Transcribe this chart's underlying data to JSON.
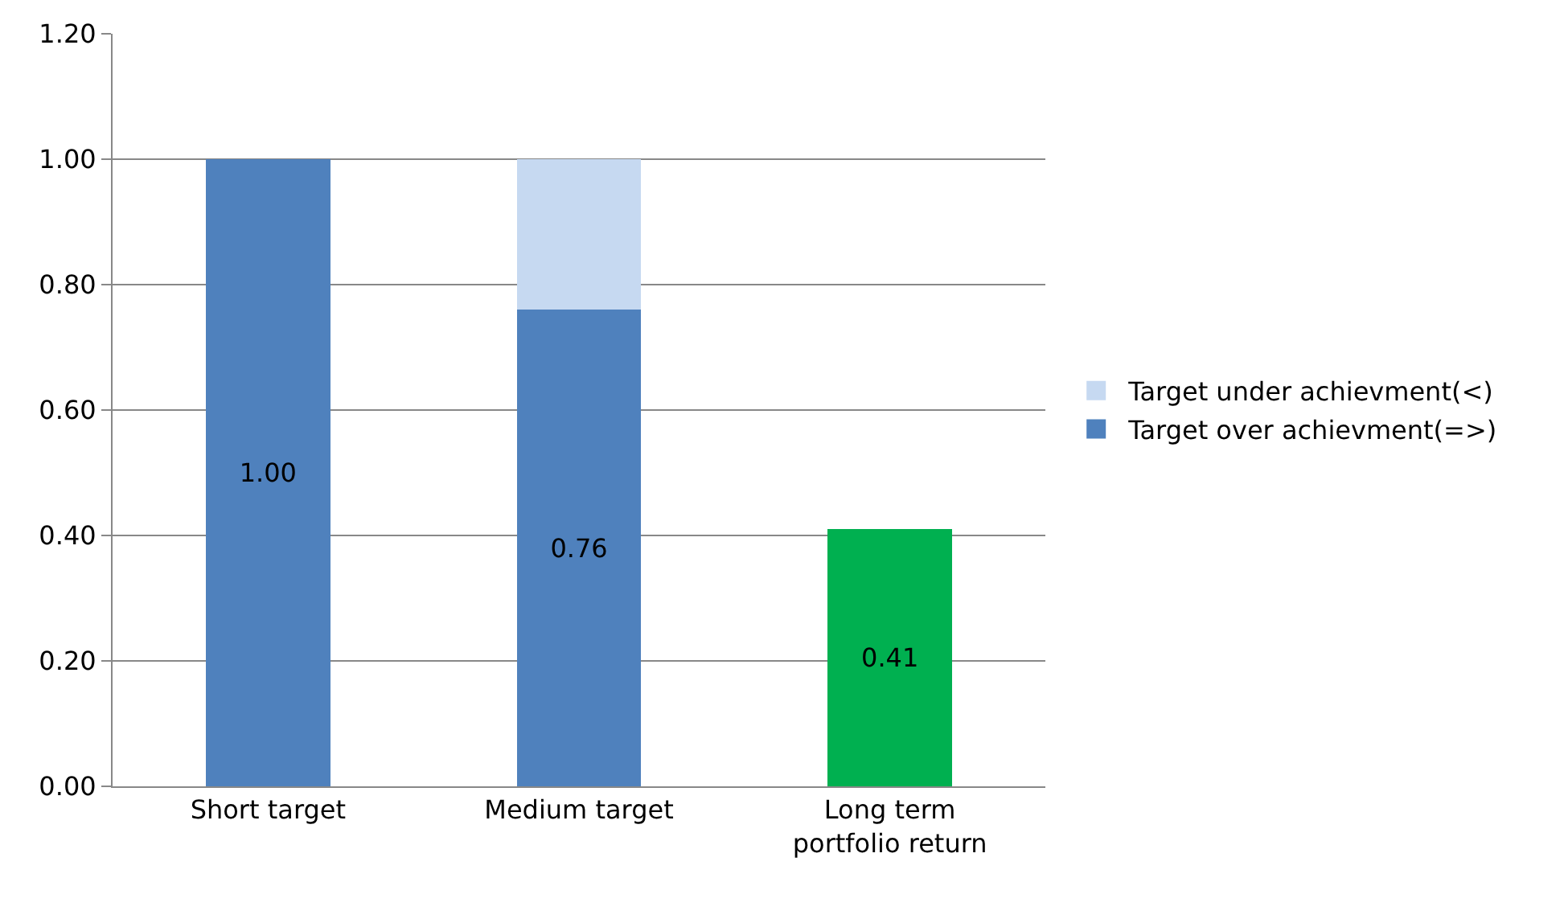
{
  "chart_data": {
    "type": "bar",
    "stacked": true,
    "categories": [
      "Short target",
      "Medium target",
      "Long term portfolio return"
    ],
    "series": [
      {
        "name": "Target over achievment(=>)",
        "color": "#4f81bd",
        "colors": [
          "#4f81bd",
          "#4f81bd",
          "#00b050"
        ],
        "values": [
          1.0,
          0.76,
          0.41
        ],
        "value_labels": [
          "1.00",
          "0.76",
          "0.41"
        ]
      },
      {
        "name": "Target under achievment(<)",
        "color": "#c6d9f1",
        "values": [
          null,
          0.24,
          null
        ]
      }
    ],
    "ylim": [
      0,
      1.2
    ],
    "yticks": [
      {
        "value": 0,
        "label": "0.00"
      },
      {
        "value": 0.2,
        "label": "0.20"
      },
      {
        "value": 0.4,
        "label": "0.40"
      },
      {
        "value": 0.6,
        "label": "0.60"
      },
      {
        "value": 0.8,
        "label": "0.80"
      },
      {
        "value": 1.0,
        "label": "1.00"
      },
      {
        "value": 1.2,
        "label": "1.20"
      }
    ],
    "grid": "y",
    "legend": "right"
  }
}
